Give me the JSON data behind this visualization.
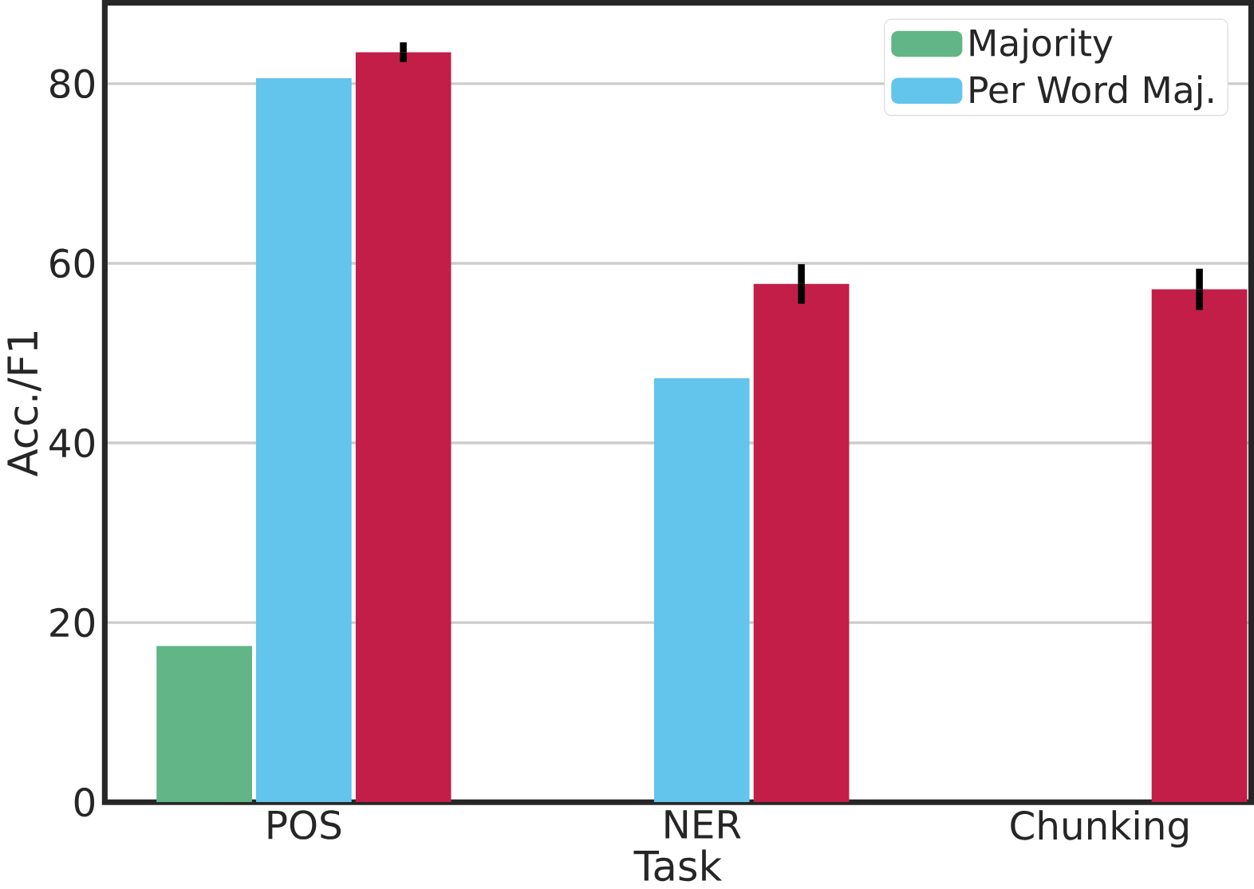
{
  "chart_data": {
    "type": "bar",
    "xlabel": "Task",
    "ylabel": "Acc./F1",
    "categories": [
      "POS",
      "NER",
      "Chunking"
    ],
    "series": [
      {
        "name": "Majority",
        "color": "#62b586",
        "values": [
          17.4,
          null,
          null
        ]
      },
      {
        "name": "Per Word Maj.",
        "color": "#63c4ec",
        "values": [
          80.6,
          47.2,
          null
        ]
      },
      {
        "color": "#c21e47",
        "values": [
          83.5,
          57.7,
          57.1
        ],
        "errors": [
          1.1,
          2.2,
          2.3
        ]
      }
    ],
    "ylim": [
      0,
      89
    ],
    "yticks": [
      0,
      20,
      40,
      60,
      80
    ],
    "grid": "y",
    "legend": "top right"
  }
}
